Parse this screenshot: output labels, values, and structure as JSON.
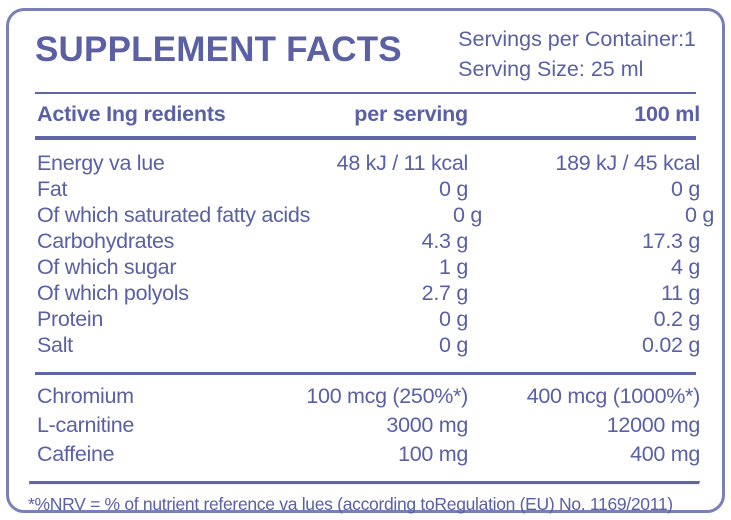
{
  "label": {
    "title": "SUPPLEMENT FACTS",
    "servings_per_container": "Servings per Container:1",
    "serving_size": "Serving Size: 25 ml",
    "columns": {
      "ingredient": "Active Ing redients",
      "per_serving": "per serving",
      "per_100ml": "100 ml"
    },
    "nutrients": [
      {
        "name": "Energy va lue",
        "per_serving": "48 kJ / 11 kcal",
        "per_100ml": "189 kJ / 45 kcal"
      },
      {
        "name": "Fat",
        "per_serving": "0 g",
        "per_100ml": "0 g"
      },
      {
        "name": "Of which saturated fatty acids",
        "per_serving": "0 g",
        "per_100ml": "0 g"
      },
      {
        "name": "Carbohydrates",
        "per_serving": "4.3 g",
        "per_100ml": "17.3 g"
      },
      {
        "name": "Of which sugar",
        "per_serving": "1 g",
        "per_100ml": "4 g"
      },
      {
        "name": "Of which polyols",
        "per_serving": "2.7 g",
        "per_100ml": "11 g"
      },
      {
        "name": "Protein",
        "per_serving": "0 g",
        "per_100ml": "0.2 g"
      },
      {
        "name": "Salt",
        "per_serving": "0 g",
        "per_100ml": "0.02 g"
      }
    ],
    "actives": [
      {
        "name": "Chromium",
        "per_serving": "100 mcg (250%*)",
        "per_100ml": "400 mcg (1000%*)"
      },
      {
        "name": "L-carnitine",
        "per_serving": "3000 mg",
        "per_100ml": "12000 mg"
      },
      {
        "name": "Caffeine",
        "per_serving": "100 mg",
        "per_100ml": "400 mg"
      }
    ],
    "footnote": "*%NRV = % of nutrient reference va lues (according toRegulation (EU) No. 1169/2011)",
    "colors": {
      "text": "#5a60a3",
      "border": "#7a7fb5",
      "rule": "#5f66a8"
    }
  }
}
